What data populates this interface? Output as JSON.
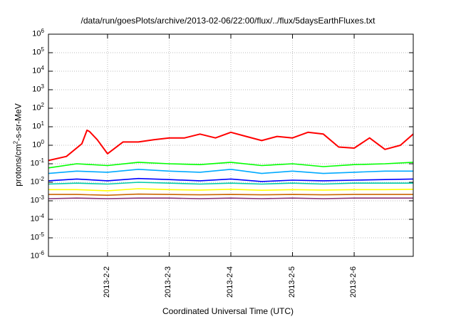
{
  "chart_data": {
    "type": "line",
    "title": "/data/run/goesPlots/archive/2013-02-06/22:00/flux/../flux/5daysEarthFluxes.txt",
    "xlabel": "Coordinated Universal Time (UTC)",
    "ylabel_prefix": "protons/cm",
    "ylabel_sup": "2",
    "ylabel_suffix": "-s-sr-MeV",
    "y_scale": "log",
    "ylim": [
      1e-06,
      1000000.0
    ],
    "y_ticks": [
      {
        "base": "10",
        "exp": "6",
        "value": 1000000.0
      },
      {
        "base": "10",
        "exp": "5",
        "value": 100000.0
      },
      {
        "base": "10",
        "exp": "4",
        "value": 10000.0
      },
      {
        "base": "10",
        "exp": "3",
        "value": 1000.0
      },
      {
        "base": "10",
        "exp": "2",
        "value": 100.0
      },
      {
        "base": "10",
        "exp": "1",
        "value": 10.0
      },
      {
        "base": "10",
        "exp": "0",
        "value": 1.0
      },
      {
        "base": "10",
        "exp": "-1",
        "value": 0.1
      },
      {
        "base": "10",
        "exp": "-2",
        "value": 0.01
      },
      {
        "base": "10",
        "exp": "-3",
        "value": 0.001
      },
      {
        "base": "10",
        "exp": "-4",
        "value": 0.0001
      },
      {
        "base": "10",
        "exp": "-5",
        "value": 1e-05
      },
      {
        "base": "10",
        "exp": "-6",
        "value": 1e-06
      }
    ],
    "xlim": [
      "2013-02-01 01:00",
      "2013-02-06 23:00"
    ],
    "x_ticks": [
      "2013-2-2",
      "2013-2-3",
      "2013-2-4",
      "2013-2-5",
      "2013-2-6"
    ],
    "grid": true,
    "legend": "none",
    "series": [
      {
        "color": "#ff0000",
        "x": [
          "2013-02-01 01:00",
          "2013-02-01 08:00",
          "2013-02-01 14:00",
          "2013-02-01 16:00",
          "2013-02-01 17:00",
          "2013-02-01 20:00",
          "2013-02-02 00:00",
          "2013-02-02 06:00",
          "2013-02-02 12:00",
          "2013-02-02 18:00",
          "2013-02-03 00:00",
          "2013-02-03 06:00",
          "2013-02-03 12:00",
          "2013-02-03 18:00",
          "2013-02-04 00:00",
          "2013-02-04 06:00",
          "2013-02-04 12:00",
          "2013-02-04 18:00",
          "2013-02-05 00:00",
          "2013-02-05 06:00",
          "2013-02-05 12:00",
          "2013-02-05 18:00",
          "2013-02-06 00:00",
          "2013-02-06 06:00",
          "2013-02-06 12:00",
          "2013-02-06 18:00",
          "2013-02-06 23:00"
        ],
        "y": [
          0.15,
          0.25,
          1.2,
          6.5,
          5.5,
          2.0,
          0.35,
          1.5,
          1.5,
          2.0,
          2.5,
          2.5,
          4.0,
          2.5,
          5.0,
          3.0,
          1.8,
          3.0,
          2.5,
          5.0,
          4.0,
          0.8,
          0.7,
          2.5,
          0.6,
          1.0,
          4.0
        ]
      },
      {
        "color": "#00ff00",
        "x": [
          "2013-02-01 01:00",
          "2013-02-01 12:00",
          "2013-02-02 00:00",
          "2013-02-02 12:00",
          "2013-02-03 00:00",
          "2013-02-03 12:00",
          "2013-02-04 00:00",
          "2013-02-04 12:00",
          "2013-02-05 00:00",
          "2013-02-05 12:00",
          "2013-02-06 00:00",
          "2013-02-06 12:00",
          "2013-02-06 23:00"
        ],
        "y": [
          0.06,
          0.1,
          0.08,
          0.12,
          0.1,
          0.09,
          0.12,
          0.08,
          0.1,
          0.07,
          0.09,
          0.1,
          0.12
        ]
      },
      {
        "color": "#00aaff",
        "x": [
          "2013-02-01 01:00",
          "2013-02-01 12:00",
          "2013-02-02 00:00",
          "2013-02-02 12:00",
          "2013-02-03 00:00",
          "2013-02-03 12:00",
          "2013-02-04 00:00",
          "2013-02-04 12:00",
          "2013-02-05 00:00",
          "2013-02-05 12:00",
          "2013-02-06 00:00",
          "2013-02-06 12:00",
          "2013-02-06 23:00"
        ],
        "y": [
          0.03,
          0.04,
          0.035,
          0.05,
          0.04,
          0.035,
          0.05,
          0.03,
          0.04,
          0.03,
          0.035,
          0.04,
          0.04
        ]
      },
      {
        "color": "#0000ff",
        "x": [
          "2013-02-01 01:00",
          "2013-02-01 12:00",
          "2013-02-02 00:00",
          "2013-02-02 12:00",
          "2013-02-03 00:00",
          "2013-02-03 12:00",
          "2013-02-04 00:00",
          "2013-02-04 12:00",
          "2013-02-05 00:00",
          "2013-02-05 12:00",
          "2013-02-06 00:00",
          "2013-02-06 12:00",
          "2013-02-06 23:00"
        ],
        "y": [
          0.012,
          0.015,
          0.012,
          0.016,
          0.014,
          0.012,
          0.015,
          0.011,
          0.013,
          0.012,
          0.013,
          0.014,
          0.015
        ]
      },
      {
        "color": "#00ccaa",
        "x": [
          "2013-02-01 01:00",
          "2013-02-01 12:00",
          "2013-02-02 00:00",
          "2013-02-02 12:00",
          "2013-02-03 00:00",
          "2013-02-03 12:00",
          "2013-02-04 00:00",
          "2013-02-04 12:00",
          "2013-02-05 00:00",
          "2013-02-05 12:00",
          "2013-02-06 00:00",
          "2013-02-06 12:00",
          "2013-02-06 23:00"
        ],
        "y": [
          0.008,
          0.009,
          0.008,
          0.01,
          0.009,
          0.008,
          0.009,
          0.008,
          0.009,
          0.008,
          0.009,
          0.009,
          0.009
        ]
      },
      {
        "color": "#ffff00",
        "x": [
          "2013-02-01 01:00",
          "2013-02-01 12:00",
          "2013-02-02 00:00",
          "2013-02-02 12:00",
          "2013-02-03 00:00",
          "2013-02-03 12:00",
          "2013-02-04 00:00",
          "2013-02-04 12:00",
          "2013-02-05 00:00",
          "2013-02-05 12:00",
          "2013-02-06 00:00",
          "2013-02-06 12:00",
          "2013-02-06 23:00"
        ],
        "y": [
          0.004,
          0.004,
          0.0035,
          0.0045,
          0.004,
          0.0038,
          0.0042,
          0.0037,
          0.004,
          0.0038,
          0.004,
          0.004,
          0.0042
        ]
      },
      {
        "color": "#cc6600",
        "x": [
          "2013-02-01 01:00",
          "2013-02-01 12:00",
          "2013-02-02 00:00",
          "2013-02-02 12:00",
          "2013-02-03 00:00",
          "2013-02-03 12:00",
          "2013-02-04 00:00",
          "2013-02-04 12:00",
          "2013-02-05 00:00",
          "2013-02-05 12:00",
          "2013-02-06 00:00",
          "2013-02-06 12:00",
          "2013-02-06 23:00"
        ],
        "y": [
          0.0022,
          0.0022,
          0.002,
          0.0023,
          0.0022,
          0.0021,
          0.0022,
          0.0021,
          0.0022,
          0.0021,
          0.0022,
          0.0022,
          0.0022
        ]
      },
      {
        "color": "#883377",
        "x": [
          "2013-02-01 01:00",
          "2013-02-01 12:00",
          "2013-02-02 00:00",
          "2013-02-02 12:00",
          "2013-02-03 00:00",
          "2013-02-03 12:00",
          "2013-02-04 00:00",
          "2013-02-04 12:00",
          "2013-02-05 00:00",
          "2013-02-05 12:00",
          "2013-02-06 00:00",
          "2013-02-06 12:00",
          "2013-02-06 23:00"
        ],
        "y": [
          0.0013,
          0.0014,
          0.0013,
          0.0014,
          0.0014,
          0.0013,
          0.0014,
          0.0013,
          0.0014,
          0.0013,
          0.0014,
          0.0014,
          0.0014
        ]
      }
    ]
  }
}
